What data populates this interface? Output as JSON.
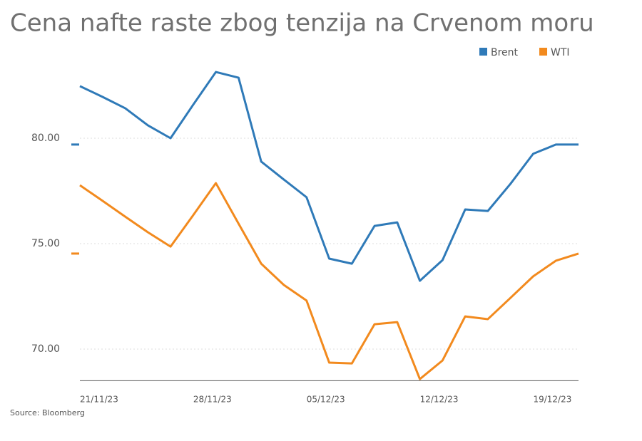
{
  "chart_data": {
    "type": "line",
    "title": "Cena nafte raste zbog tenzija na Crvenom moru",
    "source": "Source: Bloomberg",
    "categories": [
      "21/11/23",
      null,
      null,
      null,
      null,
      "28/11/23",
      null,
      null,
      null,
      null,
      "05/12/23",
      null,
      null,
      null,
      null,
      "12/12/23",
      null,
      null,
      null,
      null,
      "19/12/23",
      null,
      null
    ],
    "series": [
      {
        "name": "Brent",
        "color": "#2f7ab8",
        "values": [
          82.47,
          81.96,
          81.42,
          80.61,
          80.0,
          81.59,
          83.14,
          82.87,
          78.89,
          78.04,
          77.2,
          74.29,
          74.05,
          75.84,
          76.01,
          73.24,
          74.22,
          76.62,
          76.55,
          77.84,
          79.26,
          79.7,
          79.7
        ]
      },
      {
        "name": "WTI",
        "color": "#f28a1e",
        "values": [
          77.77,
          77.03,
          76.28,
          75.54,
          74.86,
          76.35,
          77.87,
          75.95,
          74.05,
          73.04,
          72.3,
          69.36,
          69.32,
          71.18,
          71.28,
          68.58,
          69.46,
          71.55,
          71.42,
          72.43,
          73.45,
          74.19,
          74.53
        ]
      }
    ],
    "ylim": [
      68.5,
      83.5
    ],
    "yticks": [
      {
        "value": 70,
        "label": "70.00"
      },
      {
        "value": 75,
        "label": "75.00"
      },
      {
        "value": 80,
        "label": "80.00"
      }
    ],
    "grid": true,
    "legend": "top-right"
  }
}
